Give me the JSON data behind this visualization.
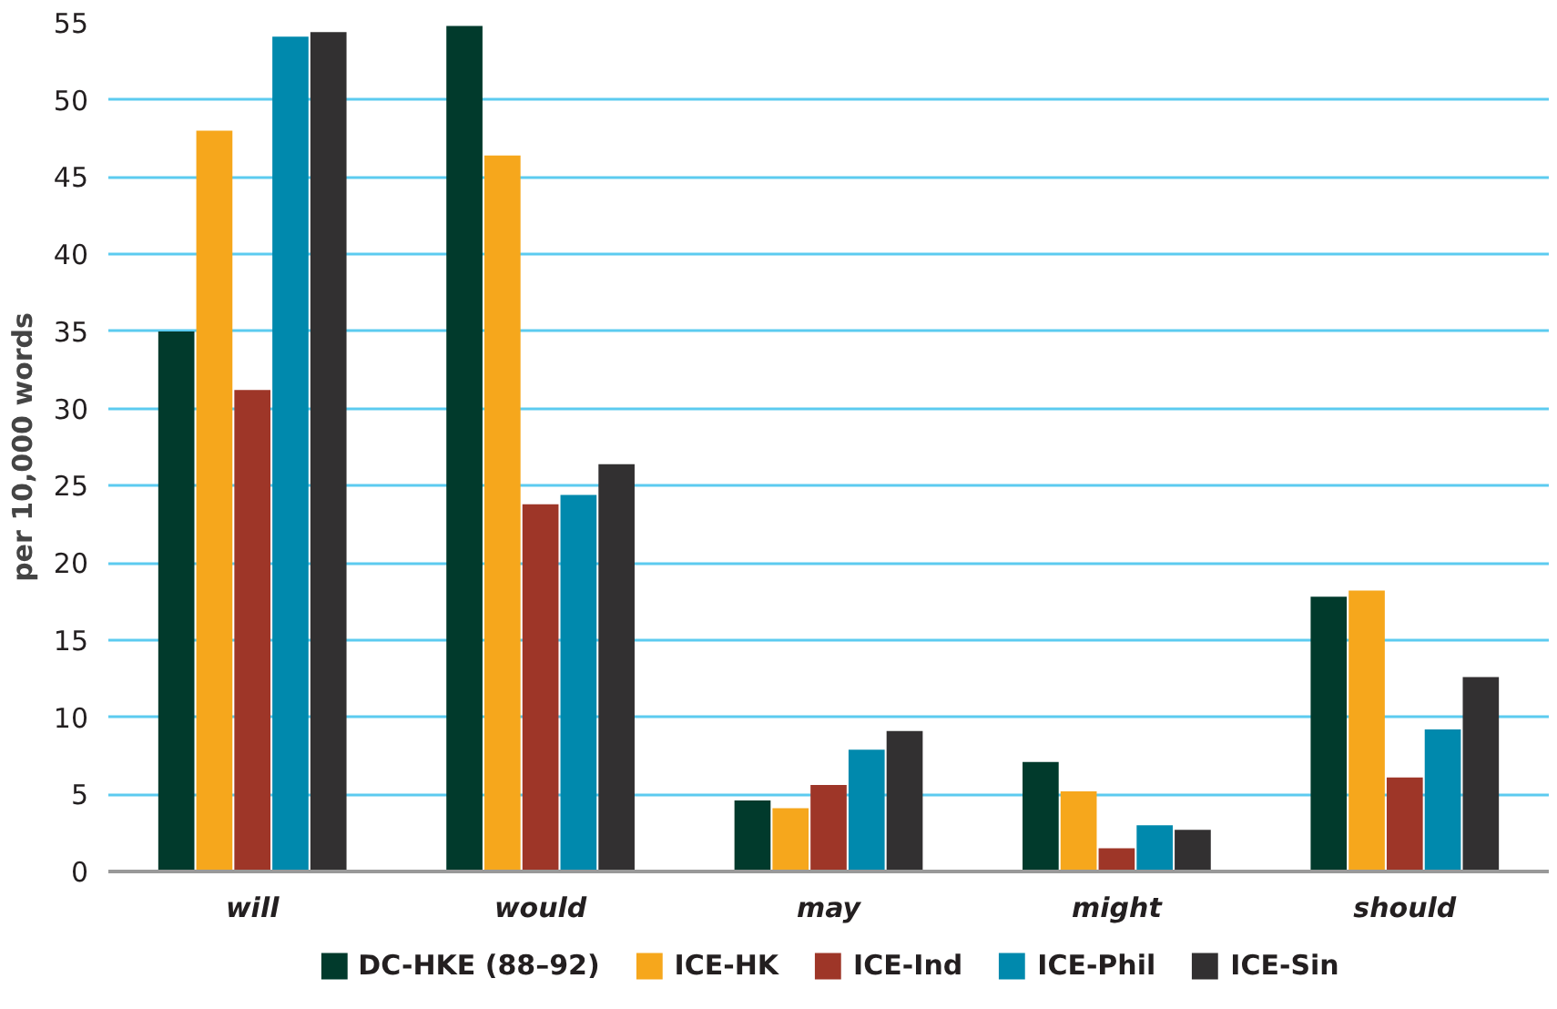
{
  "chart_data": {
    "type": "bar",
    "ylabel": "per 10,000 words",
    "categories": [
      "will",
      "would",
      "may",
      "might",
      "should"
    ],
    "series": [
      {
        "name": "DC-HKE (88–92)",
        "color": "#013a2c",
        "values": [
          35.0,
          54.8,
          4.6,
          7.1,
          17.8
        ]
      },
      {
        "name": "ICE-HK",
        "color": "#f6a71c",
        "values": [
          48.0,
          46.4,
          4.1,
          5.2,
          18.2
        ]
      },
      {
        "name": "ICE-Ind",
        "color": "#9e3628",
        "values": [
          31.2,
          23.8,
          5.6,
          1.5,
          6.1
        ]
      },
      {
        "name": "ICE-Phil",
        "color": "#0089ad",
        "values": [
          54.1,
          24.4,
          7.9,
          3.0,
          9.2
        ]
      },
      {
        "name": "ICE-Sin",
        "color": "#323031",
        "values": [
          54.4,
          26.4,
          9.1,
          2.7,
          12.6
        ]
      }
    ],
    "ylim": [
      0,
      55
    ],
    "yticks": [
      0,
      5,
      10,
      15,
      20,
      25,
      30,
      35,
      40,
      45,
      50,
      55
    ],
    "grid": "y",
    "legend": "bottom"
  }
}
